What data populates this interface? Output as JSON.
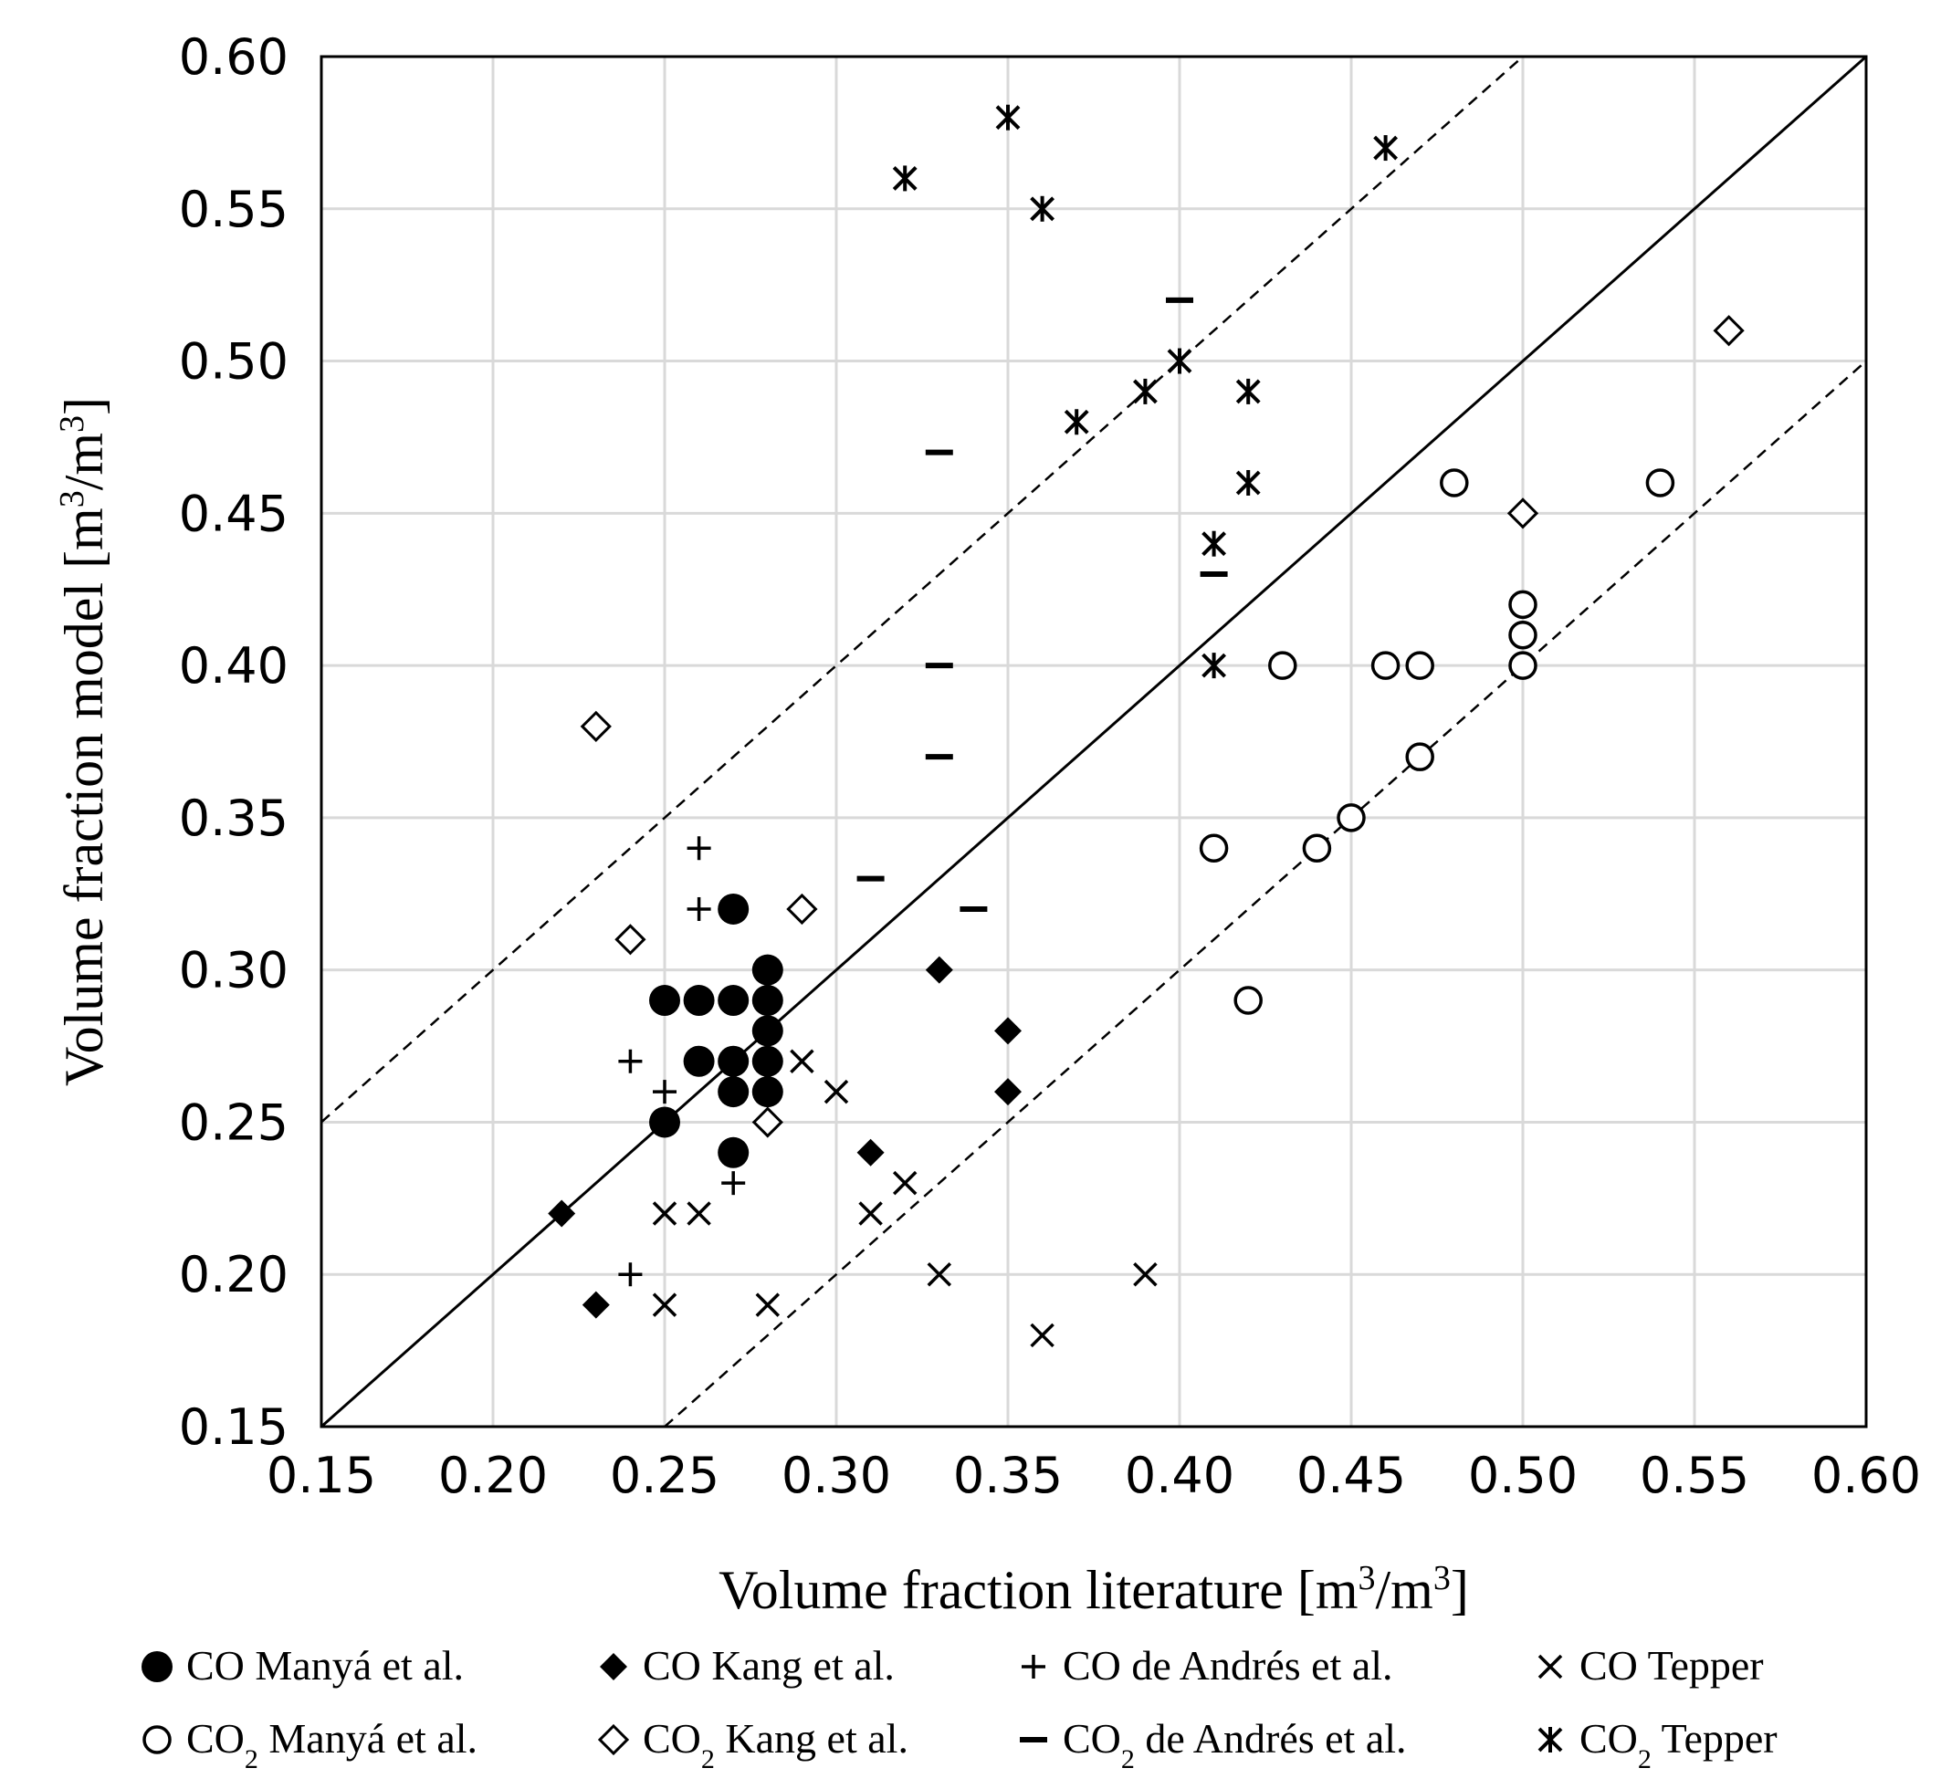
{
  "chart_data": {
    "type": "scatter",
    "title": "",
    "xlabel": {
      "main": "Volume fraction literature [m",
      "sup1": "3",
      "mid": "/m",
      "sup2": "3",
      "end": "]"
    },
    "ylabel": {
      "main": "Volume fraction model [m",
      "sup1": "3",
      "mid": "/m",
      "sup2": "3",
      "end": "]"
    },
    "xlim": [
      0.15,
      0.6
    ],
    "ylim": [
      0.15,
      0.6
    ],
    "x_ticks": [
      "0.15",
      "0.20",
      "0.25",
      "0.30",
      "0.35",
      "0.40",
      "0.45",
      "0.50",
      "0.55",
      "0.60"
    ],
    "y_ticks": [
      "0.15",
      "0.20",
      "0.25",
      "0.30",
      "0.35",
      "0.40",
      "0.45",
      "0.50",
      "0.55",
      "0.60"
    ],
    "grid": true,
    "reference_lines": [
      {
        "name": "parity",
        "style": "solid",
        "offset": 0.0
      },
      {
        "name": "upper-bound",
        "style": "dashed",
        "offset": 0.1
      },
      {
        "name": "lower-bound",
        "style": "dashed",
        "offset": -0.1
      }
    ],
    "series": [
      {
        "name": "CO Manyá et al.",
        "name_parts": [
          "CO Manyá et al."
        ],
        "marker": "filled-circle",
        "points": [
          [
            0.25,
            0.29
          ],
          [
            0.26,
            0.29
          ],
          [
            0.27,
            0.29
          ],
          [
            0.28,
            0.29
          ],
          [
            0.28,
            0.3
          ],
          [
            0.27,
            0.32
          ],
          [
            0.28,
            0.28
          ],
          [
            0.26,
            0.27
          ],
          [
            0.27,
            0.27
          ],
          [
            0.28,
            0.27
          ],
          [
            0.27,
            0.26
          ],
          [
            0.28,
            0.26
          ],
          [
            0.25,
            0.25
          ],
          [
            0.27,
            0.24
          ]
        ]
      },
      {
        "name": "CO2 Manyá et al.",
        "name_parts": [
          "CO",
          "2",
          " Manyá et al."
        ],
        "marker": "open-circle",
        "points": [
          [
            0.48,
            0.46
          ],
          [
            0.54,
            0.46
          ],
          [
            0.5,
            0.42
          ],
          [
            0.5,
            0.41
          ],
          [
            0.43,
            0.4
          ],
          [
            0.46,
            0.4
          ],
          [
            0.47,
            0.4
          ],
          [
            0.5,
            0.4
          ],
          [
            0.47,
            0.37
          ],
          [
            0.45,
            0.35
          ],
          [
            0.41,
            0.34
          ],
          [
            0.44,
            0.34
          ],
          [
            0.42,
            0.29
          ]
        ]
      },
      {
        "name": "CO Kang et al.",
        "name_parts": [
          "CO Kang et al."
        ],
        "marker": "filled-diamond",
        "points": [
          [
            0.33,
            0.3
          ],
          [
            0.35,
            0.28
          ],
          [
            0.35,
            0.26
          ],
          [
            0.31,
            0.24
          ],
          [
            0.22,
            0.22
          ],
          [
            0.23,
            0.19
          ]
        ]
      },
      {
        "name": "CO2 Kang et al.",
        "name_parts": [
          "CO",
          "2",
          " Kang et al."
        ],
        "marker": "open-diamond",
        "points": [
          [
            0.56,
            0.51
          ],
          [
            0.5,
            0.45
          ],
          [
            0.23,
            0.38
          ],
          [
            0.29,
            0.32
          ],
          [
            0.24,
            0.31
          ],
          [
            0.28,
            0.25
          ]
        ]
      },
      {
        "name": "CO de Andrés et al.",
        "name_parts": [
          "CO de Andrés et al."
        ],
        "marker": "plus",
        "points": [
          [
            0.26,
            0.34
          ],
          [
            0.26,
            0.32
          ],
          [
            0.24,
            0.27
          ],
          [
            0.25,
            0.26
          ],
          [
            0.27,
            0.23
          ],
          [
            0.24,
            0.2
          ]
        ]
      },
      {
        "name": "CO2 de Andrés et al.",
        "name_parts": [
          "CO",
          "2",
          " de Andrés et al."
        ],
        "marker": "dash",
        "points": [
          [
            0.4,
            0.52
          ],
          [
            0.33,
            0.47
          ],
          [
            0.41,
            0.43
          ],
          [
            0.33,
            0.4
          ],
          [
            0.33,
            0.37
          ],
          [
            0.31,
            0.33
          ],
          [
            0.34,
            0.32
          ]
        ]
      },
      {
        "name": "CO Tepper",
        "name_parts": [
          "CO Tepper"
        ],
        "marker": "cross",
        "points": [
          [
            0.29,
            0.27
          ],
          [
            0.3,
            0.26
          ],
          [
            0.32,
            0.23
          ],
          [
            0.25,
            0.22
          ],
          [
            0.26,
            0.22
          ],
          [
            0.31,
            0.22
          ],
          [
            0.33,
            0.2
          ],
          [
            0.39,
            0.2
          ],
          [
            0.25,
            0.19
          ],
          [
            0.28,
            0.19
          ],
          [
            0.36,
            0.18
          ]
        ]
      },
      {
        "name": "CO2 Tepper",
        "name_parts": [
          "CO",
          "2",
          " Tepper"
        ],
        "marker": "asterisk",
        "points": [
          [
            0.35,
            0.58
          ],
          [
            0.32,
            0.56
          ],
          [
            0.36,
            0.55
          ],
          [
            0.46,
            0.57
          ],
          [
            0.4,
            0.5
          ],
          [
            0.39,
            0.49
          ],
          [
            0.42,
            0.49
          ],
          [
            0.37,
            0.48
          ],
          [
            0.42,
            0.46
          ],
          [
            0.41,
            0.44
          ],
          [
            0.41,
            0.4
          ]
        ]
      }
    ]
  }
}
